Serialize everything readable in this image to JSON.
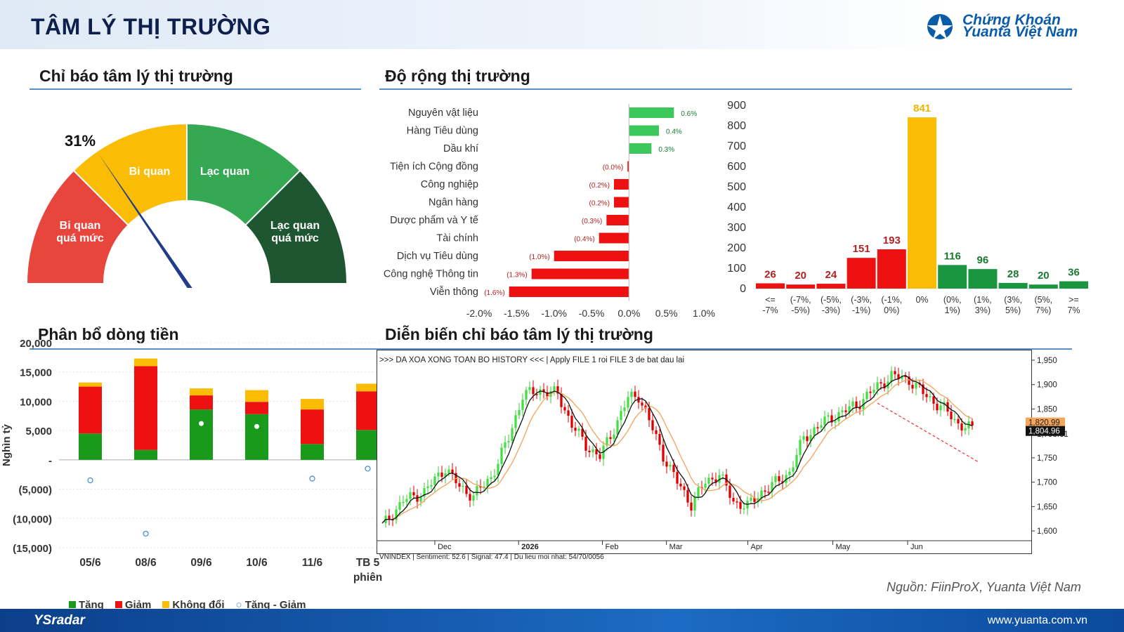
{
  "header": {
    "title": "TÂM LÝ THỊ TRƯỜNG",
    "logo_line1": "Chứng Khoán",
    "logo_line2": "Yuanta Việt Nam"
  },
  "sections": {
    "gauge_title": "Chỉ báo tâm lý thị trường",
    "breadth_title": "Độ rộng thị trường",
    "flow_title": "Phân bổ dòng tiền",
    "history_title": "Diễn biến chỉ báo tâm lý thị trường"
  },
  "gauge": {
    "value_label": "31%",
    "value": 31,
    "segments": [
      {
        "label1": "Bi quan",
        "label2": "quá mức",
        "color": "#e8453c"
      },
      {
        "label1": "Bi quan",
        "label2": "",
        "color": "#fbbc05"
      },
      {
        "label1": "Lạc quan",
        "label2": "",
        "color": "#34a853"
      },
      {
        "label1": "Lạc quan",
        "label2": "quá mức",
        "color": "#1e5631"
      }
    ]
  },
  "chart_data": [
    {
      "type": "bar",
      "orientation": "horizontal",
      "categories": [
        "Nguyên vật liệu",
        "Hàng Tiêu dùng",
        "Dầu khí",
        "Tiện ích Cộng đồng",
        "Công nghiệp",
        "Ngân hàng",
        "Dược phẩm và Y tế",
        "Tài chính",
        "Dịch vụ Tiêu dùng",
        "Công nghệ Thông tin",
        "Viễn thông"
      ],
      "values": [
        0.6,
        0.4,
        0.3,
        -0.02,
        -0.2,
        -0.2,
        -0.3,
        -0.4,
        -1.0,
        -1.3,
        -1.6
      ],
      "labels": [
        "0.6%",
        "0.4%",
        "0.3%",
        "(0.0%)",
        "(0.2%)",
        "(0.2%)",
        "(0.3%)",
        "(0.4%)",
        "(1.0%)",
        "(1.3%)",
        "(1.6%)"
      ],
      "xticks": [
        "-2.0%",
        "-1.5%",
        "-1.0%",
        "-0.5%",
        "0.0%",
        "0.5%",
        "1.0%"
      ],
      "xlim": [
        -2.0,
        1.0
      ],
      "colors": {
        "pos": "#3cc85a",
        "neg": "#ee1111"
      }
    },
    {
      "type": "bar",
      "categories": [
        "<= -7%",
        "(-7%, -5%)",
        "(-5%, -3%)",
        "(-3%, -1%)",
        "(-1%, 0%)",
        "0%",
        "(0%, 1%)",
        "(1%, 3%)",
        "(3%, 5%)",
        "(5%, 7%)",
        ">= 7%"
      ],
      "values": [
        26,
        20,
        24,
        151,
        193,
        841,
        116,
        96,
        28,
        20,
        36
      ],
      "colors": [
        "#ee1111",
        "#ee1111",
        "#ee1111",
        "#ee1111",
        "#ee1111",
        "#fbbc05",
        "#1a9641",
        "#1a9641",
        "#1a9641",
        "#1a9641",
        "#1a9641"
      ],
      "label_colors": [
        "#b22222",
        "#b22222",
        "#b22222",
        "#b22222",
        "#b22222",
        "#f0b400",
        "#1a7a32",
        "#1a7a32",
        "#1a7a32",
        "#1a7a32",
        "#1a7a32"
      ],
      "yticks": [
        "0",
        "100",
        "200",
        "300",
        "400",
        "500",
        "600",
        "700",
        "800",
        "900"
      ],
      "ylim": [
        0,
        900
      ]
    },
    {
      "type": "bar",
      "stacked": true,
      "categories": [
        "05/6",
        "08/6",
        "09/6",
        "10/6",
        "11/6",
        "TB 5 phiên"
      ],
      "series": [
        {
          "name": "Tăng",
          "values": [
            4500,
            1700,
            8600,
            7800,
            2700,
            5100
          ],
          "color": "#1a9a1a"
        },
        {
          "name": "Giảm",
          "values": [
            8000,
            14300,
            2400,
            2100,
            5900,
            6600
          ],
          "color": "#ee1111"
        },
        {
          "name": "Không đổi",
          "values": [
            700,
            1300,
            1200,
            2000,
            1800,
            1300
          ],
          "color": "#fbbc05"
        },
        {
          "name": "Tăng - Giảm",
          "values": [
            -3500,
            -12600,
            6200,
            5700,
            -3200,
            -1500
          ],
          "color": "#4a90d9"
        }
      ],
      "yticks": [
        "20,000",
        "15,000",
        "10,000",
        "5,000",
        "-",
        "(5,000)",
        "(10,000)",
        "(15,000)"
      ],
      "ylim": [
        -15000,
        20000
      ],
      "ylabel": "Nghìn tỷ"
    },
    {
      "type": "line",
      "subtype": "candlestick",
      "title_text": ">>> DA XOA XONG TOAN BO HISTORY <<< | Apply FILE 1 roi FILE 3 de bat dau lai",
      "bottom_text": "VNINDEX | Sentiment: 52.6 | Signal: 47.4 | Du lieu moi nhat: 54/70/0056",
      "xticks": [
        "Dec",
        "2026",
        "Feb",
        "Mar",
        "Apr",
        "May",
        "Jun"
      ],
      "yticks": [
        "1,950",
        "1,900",
        "1,850",
        "1,798.61",
        "1,750",
        "1,700",
        "1,650",
        "1,600"
      ],
      "ylim": [
        1580,
        1960
      ],
      "price_tags": [
        "1,820.99",
        "1,804.96"
      ],
      "keypoints": [
        [
          0,
          1610
        ],
        [
          6,
          1662
        ],
        [
          12,
          1680
        ],
        [
          18,
          1730
        ],
        [
          22,
          1690
        ],
        [
          26,
          1672
        ],
        [
          31,
          1710
        ],
        [
          36,
          1790
        ],
        [
          40,
          1878
        ],
        [
          45,
          1888
        ],
        [
          50,
          1880
        ],
        [
          54,
          1818
        ],
        [
          58,
          1775
        ],
        [
          62,
          1752
        ],
        [
          66,
          1810
        ],
        [
          70,
          1872
        ],
        [
          73,
          1878
        ],
        [
          76,
          1826
        ],
        [
          80,
          1755
        ],
        [
          84,
          1700
        ],
        [
          88,
          1655
        ],
        [
          92,
          1700
        ],
        [
          96,
          1716
        ],
        [
          100,
          1660
        ],
        [
          104,
          1650
        ],
        [
          108,
          1680
        ],
        [
          112,
          1698
        ],
        [
          116,
          1720
        ],
        [
          120,
          1790
        ],
        [
          125,
          1820
        ],
        [
          130,
          1840
        ],
        [
          135,
          1858
        ],
        [
          140,
          1890
        ],
        [
          145,
          1918
        ],
        [
          150,
          1910
        ],
        [
          155,
          1876
        ],
        [
          160,
          1850
        ],
        [
          164,
          1820
        ],
        [
          168,
          1808
        ]
      ]
    }
  ],
  "flow_legend": [
    "Tăng",
    "Giảm",
    "Không đổi",
    "Tăng - Giảm"
  ],
  "source": "Nguồn: FiinProX, Yuanta Việt Nam",
  "footer": {
    "brand": "YSradar",
    "url": "www.yuanta.com.vn"
  }
}
